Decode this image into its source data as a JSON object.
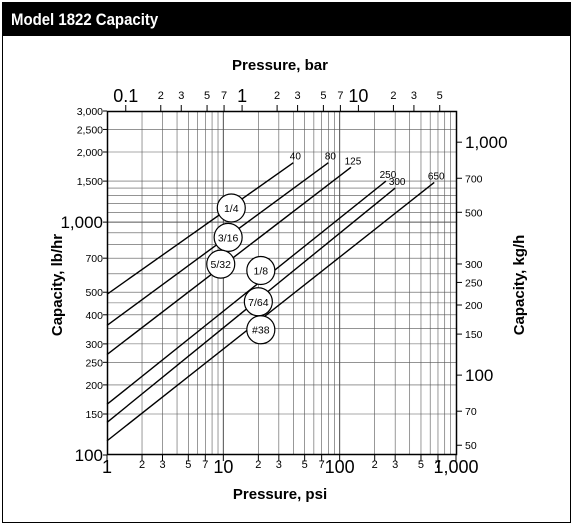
{
  "header": {
    "title": "Model 1822 Capacity"
  },
  "chart_data": {
    "type": "line",
    "title": "Model 1822 Capacity",
    "xlabel": "Pressure, psi",
    "x2label": "Pressure, bar",
    "ylabel": "Capacity, lb/hr",
    "y2label": "Capacity, kg/h",
    "x_scale": "log",
    "y_scale": "log",
    "xlim": [
      1,
      1000
    ],
    "ylim": [
      100,
      3000
    ],
    "x2lim": [
      0.069,
      69
    ],
    "y2lim": [
      45.4,
      1361
    ],
    "grid": true,
    "x_ticks": [
      {
        "v": 1,
        "t": "1",
        "major": true
      },
      {
        "v": 2,
        "t": "2"
      },
      {
        "v": 3,
        "t": "3"
      },
      {
        "v": 5,
        "t": "5"
      },
      {
        "v": 7,
        "t": "7"
      },
      {
        "v": 10,
        "t": "10",
        "major": true
      },
      {
        "v": 20,
        "t": "2"
      },
      {
        "v": 30,
        "t": "3"
      },
      {
        "v": 50,
        "t": "5"
      },
      {
        "v": 70,
        "t": "7"
      },
      {
        "v": 100,
        "t": "100",
        "major": true
      },
      {
        "v": 200,
        "t": "2"
      },
      {
        "v": 300,
        "t": "3"
      },
      {
        "v": 500,
        "t": "5"
      },
      {
        "v": 700,
        "t": "7"
      },
      {
        "v": 1000,
        "t": "1,000",
        "major": true
      }
    ],
    "x2_ticks": [
      {
        "v": 0.1,
        "t": "0.1",
        "major": true
      },
      {
        "v": 0.2,
        "t": "2"
      },
      {
        "v": 0.3,
        "t": "3"
      },
      {
        "v": 0.5,
        "t": "5"
      },
      {
        "v": 0.7,
        "t": "7"
      },
      {
        "v": 1,
        "t": "1",
        "major": true
      },
      {
        "v": 2,
        "t": "2"
      },
      {
        "v": 3,
        "t": "3"
      },
      {
        "v": 5,
        "t": "5"
      },
      {
        "v": 7,
        "t": "7"
      },
      {
        "v": 10,
        "t": "10",
        "major": true
      },
      {
        "v": 20,
        "t": "2"
      },
      {
        "v": 30,
        "t": "3"
      },
      {
        "v": 50,
        "t": "5"
      }
    ],
    "y_ticks": [
      {
        "v": 100,
        "t": "100",
        "major": true
      },
      {
        "v": 150,
        "t": "150"
      },
      {
        "v": 200,
        "t": "200"
      },
      {
        "v": 250,
        "t": "250"
      },
      {
        "v": 300,
        "t": "300"
      },
      {
        "v": 400,
        "t": "400"
      },
      {
        "v": 500,
        "t": "500"
      },
      {
        "v": 700,
        "t": "700"
      },
      {
        "v": 1000,
        "t": "1,000",
        "major": true
      },
      {
        "v": 1500,
        "t": "1,500"
      },
      {
        "v": 2000,
        "t": "2,000"
      },
      {
        "v": 2500,
        "t": "2,500"
      },
      {
        "v": 3000,
        "t": "3,000"
      }
    ],
    "y2_ticks": [
      {
        "v": 50,
        "t": "50"
      },
      {
        "v": 70,
        "t": "70"
      },
      {
        "v": 100,
        "t": "100",
        "major": true
      },
      {
        "v": 150,
        "t": "150"
      },
      {
        "v": 200,
        "t": "200"
      },
      {
        "v": 250,
        "t": "250"
      },
      {
        "v": 300,
        "t": "300"
      },
      {
        "v": 500,
        "t": "500"
      },
      {
        "v": 700,
        "t": "700"
      },
      {
        "v": 1000,
        "t": "1,000",
        "major": true
      }
    ],
    "y_grid": [
      100,
      150,
      200,
      250,
      300,
      350,
      400,
      450,
      500,
      600,
      700,
      800,
      900,
      1000,
      1100,
      1200,
      1300,
      1400,
      1500,
      2000,
      2500,
      3000
    ],
    "series": [
      {
        "name": "1/4",
        "end_label": "40",
        "x": [
          1,
          40
        ],
        "y": [
          490,
          1800
        ]
      },
      {
        "name": "3/16",
        "end_label": "80",
        "x": [
          1,
          80
        ],
        "y": [
          360,
          1800
        ]
      },
      {
        "name": "5/32",
        "end_label": "125",
        "x": [
          1,
          125
        ],
        "y": [
          270,
          1720
        ]
      },
      {
        "name": "1/8",
        "end_label": "250",
        "x": [
          1,
          250
        ],
        "y": [
          165,
          1500
        ]
      },
      {
        "name": "7/64",
        "end_label": "300",
        "x": [
          1,
          300
        ],
        "y": [
          138,
          1400
        ]
      },
      {
        "name": "#38",
        "end_label": "650",
        "x": [
          1,
          650
        ],
        "y": [
          115,
          1480
        ]
      }
    ],
    "bubble_positions": {
      "1/4": {
        "x": 11.7,
        "y": 1150
      },
      "3/16": {
        "x": 11.0,
        "y": 860
      },
      "5/32": {
        "x": 9.5,
        "y": 660
      },
      "1/8": {
        "x": 21.0,
        "y": 620
      },
      "7/64": {
        "x": 20.0,
        "y": 455
      },
      "#38": {
        "x": 21.0,
        "y": 345
      }
    }
  }
}
